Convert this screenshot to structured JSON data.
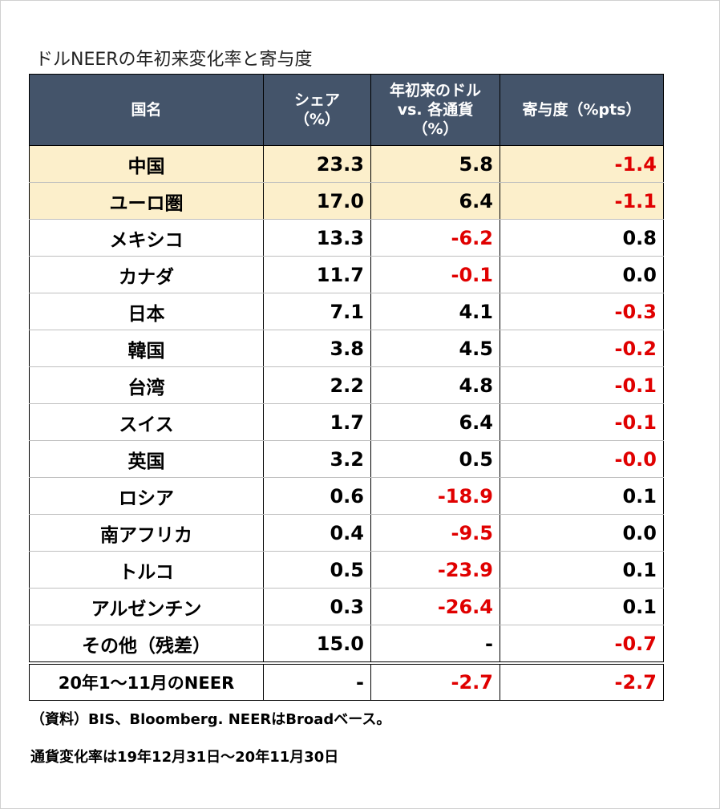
{
  "title": "ドルNEERの年初来変化率と寄与度",
  "headers": [
    "国名",
    "シェア（%）",
    "年初来のドル vs. 各通貨（%）",
    "寄与度（%pts）"
  ],
  "rows": [
    {
      "name": "中国",
      "share": "23.3",
      "change": "5.8",
      "contrib": "-1.4",
      "highlight": true
    },
    {
      "name": "ユーロ圏",
      "share": "17.0",
      "change": "6.4",
      "contrib": "-1.1",
      "highlight": true
    },
    {
      "name": "メキシコ",
      "share": "13.3",
      "change": "-6.2",
      "contrib": "0.8"
    },
    {
      "name": "カナダ",
      "share": "11.7",
      "change": "-0.1",
      "contrib": "0.0"
    },
    {
      "name": "日本",
      "share": "7.1",
      "change": "4.1",
      "contrib": "-0.3"
    },
    {
      "name": "韓国",
      "share": "3.8",
      "change": "4.5",
      "contrib": "-0.2"
    },
    {
      "name": "台湾",
      "share": "2.2",
      "change": "4.8",
      "contrib": "-0.1"
    },
    {
      "name": "スイス",
      "share": "1.7",
      "change": "6.4",
      "contrib": "-0.1"
    },
    {
      "name": "英国",
      "share": "3.2",
      "change": "0.5",
      "contrib": "-0.0"
    },
    {
      "name": "ロシア",
      "share": "0.6",
      "change": "-18.9",
      "contrib": "0.1"
    },
    {
      "name": "南アフリカ",
      "share": "0.4",
      "change": "-9.5",
      "contrib": "0.0"
    },
    {
      "name": "トルコ",
      "share": "0.5",
      "change": "-23.9",
      "contrib": "0.1"
    },
    {
      "name": "アルゼンチン",
      "share": "0.3",
      "change": "-26.4",
      "contrib": "0.1"
    },
    {
      "name": "その他（残差）",
      "share": "15.0",
      "change": "-",
      "contrib": "-0.7"
    }
  ],
  "total": {
    "name": "20年1～11月のNEER",
    "share": "-",
    "change": "-2.7",
    "contrib": "-2.7"
  },
  "notes": [
    "（資料）BIS、Bloomberg. NEERはBroadベース。",
    "通貨変化率は19年12月31日～20年11月30日"
  ],
  "colors": {
    "header_bg": "#44546a",
    "highlight_bg": "#fcefcb",
    "negative": "#e00000"
  }
}
